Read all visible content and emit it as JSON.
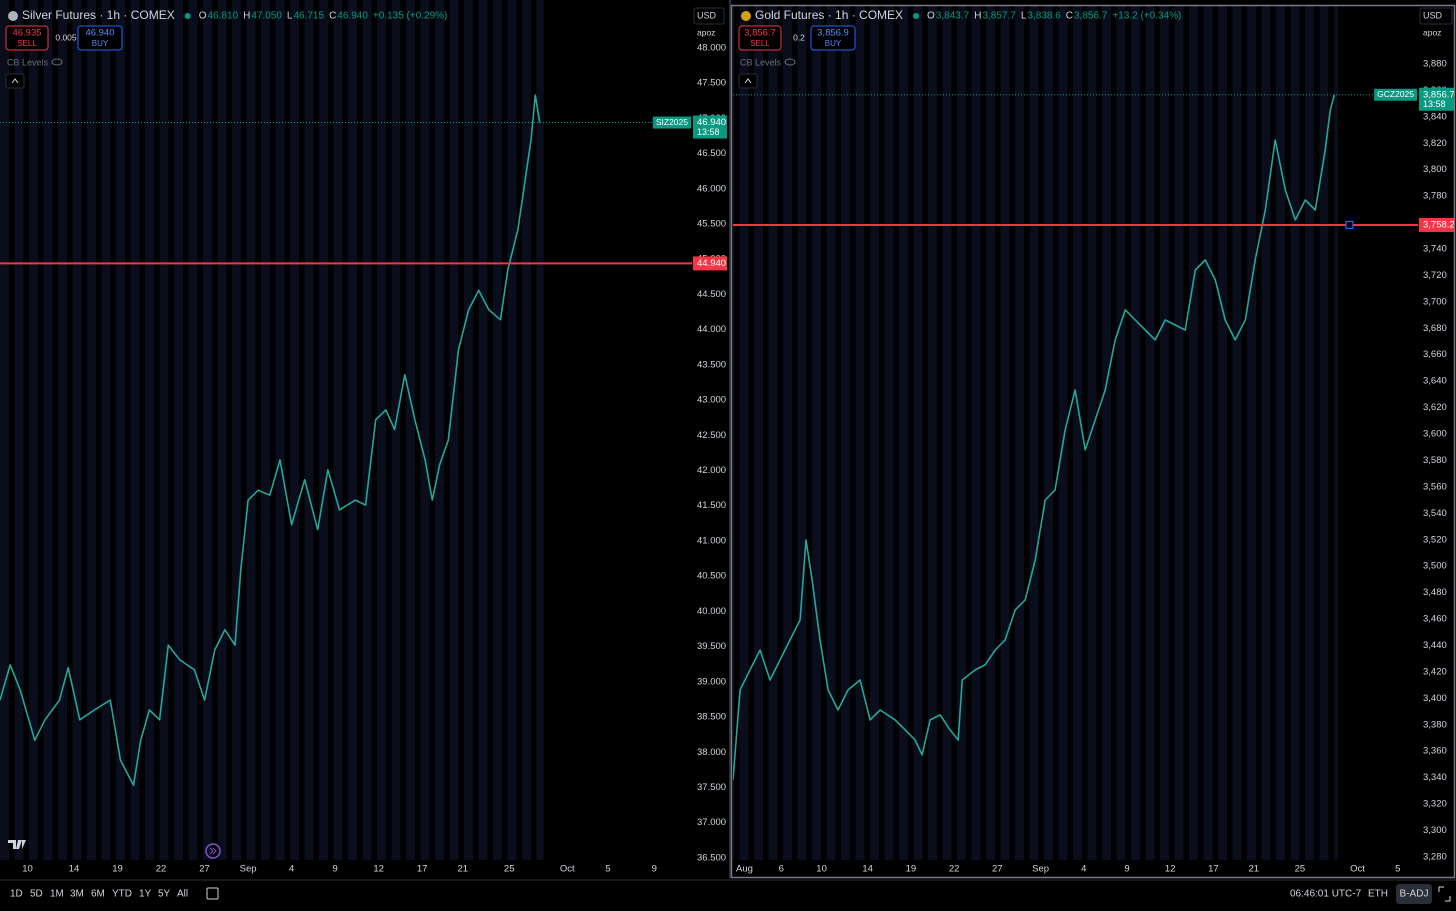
{
  "chart_data": [
    {
      "type": "line",
      "header": {
        "title": "Silver Futures · 1h · COMEX",
        "ohlc": [
          {
            "key": "O",
            "value": "46.810"
          },
          {
            "key": "H",
            "value": "47.050"
          },
          {
            "key": "L",
            "value": "46.715"
          },
          {
            "key": "C",
            "value": "46.940"
          }
        ],
        "change": "+0.135 (+0.29%)",
        "sell": {
          "price": "46.935",
          "label": "SELL"
        },
        "spread": "0.005",
        "buy": {
          "price": "46.940",
          "label": "BUY"
        },
        "indicator": "CB Levels",
        "currency": "USD",
        "scale_mode": "apoz"
      },
      "color": "#26a69a",
      "x": [
        3.9,
        4.6,
        5.3,
        6.3,
        7.0,
        8.0,
        8.6,
        9.4,
        10.4,
        11.5,
        12.2,
        13.1,
        13.6,
        14.2,
        14.9,
        15.5,
        16.3,
        17.3,
        18.0,
        18.7,
        19.4,
        20.1,
        20.5,
        21.0,
        21.7,
        22.5,
        23.2,
        24.0,
        24.9,
        25.8,
        26.5,
        27.3,
        28.4,
        29.1,
        29.8,
        30.5,
        31.1,
        31.8,
        32.5,
        33.2,
        33.7,
        34.2,
        34.8,
        35.5,
        36.2,
        36.9,
        37.6,
        38.4,
        38.9,
        39.6,
        40.1,
        40.5,
        40.8,
        41.1
      ],
      "values": [
        38.74,
        39.24,
        38.88,
        38.17,
        38.46,
        38.74,
        39.2,
        38.46,
        38.6,
        38.74,
        37.89,
        37.53,
        38.17,
        38.6,
        38.46,
        39.52,
        39.31,
        39.17,
        38.74,
        39.45,
        39.74,
        39.52,
        40.59,
        41.58,
        41.72,
        41.65,
        42.15,
        41.23,
        41.87,
        41.16,
        42.01,
        41.44,
        41.58,
        41.51,
        42.72,
        42.86,
        42.58,
        43.36,
        42.72,
        42.15,
        41.58,
        42.08,
        42.43,
        43.71,
        44.28,
        44.56,
        44.28,
        44.14,
        44.85,
        45.42,
        46.13,
        46.69,
        47.33,
        46.94
      ],
      "xlim": [
        3.9,
        51.6
      ],
      "xticks": [
        {
          "value": 5.8,
          "label": "10"
        },
        {
          "value": 9,
          "label": "14"
        },
        {
          "value": 12,
          "label": "19"
        },
        {
          "value": 15,
          "label": "22"
        },
        {
          "value": 18,
          "label": "27"
        },
        {
          "value": 21,
          "label": "Sep"
        },
        {
          "value": 24,
          "label": "4"
        },
        {
          "value": 27,
          "label": "9"
        },
        {
          "value": 30,
          "label": "12"
        },
        {
          "value": 33,
          "label": "17"
        },
        {
          "value": 35.8,
          "label": "21"
        },
        {
          "value": 39,
          "label": "25"
        },
        {
          "value": 43,
          "label": "Oct"
        },
        {
          "value": 45.8,
          "label": "5"
        },
        {
          "value": 49,
          "label": "9"
        }
      ],
      "ylim": [
        36.47,
        48.68
      ],
      "yticks": [
        {
          "value": 36.5,
          "label": "36.500"
        },
        {
          "value": 37,
          "label": "37.000"
        },
        {
          "value": 37.5,
          "label": "37.500"
        },
        {
          "value": 38,
          "label": "38.000"
        },
        {
          "value": 38.5,
          "label": "38.500"
        },
        {
          "value": 39,
          "label": "39.000"
        },
        {
          "value": 39.5,
          "label": "39.500"
        },
        {
          "value": 40,
          "label": "40.000"
        },
        {
          "value": 40.5,
          "label": "40.500"
        },
        {
          "value": 41,
          "label": "41.000"
        },
        {
          "value": 41.5,
          "label": "41.500"
        },
        {
          "value": 42,
          "label": "42.000"
        },
        {
          "value": 42.5,
          "label": "42.500"
        },
        {
          "value": 43,
          "label": "43.000"
        },
        {
          "value": 43.5,
          "label": "43.500"
        },
        {
          "value": 44,
          "label": "44.000"
        },
        {
          "value": 44.5,
          "label": "44.500"
        },
        {
          "value": 45,
          "label": "45.000"
        },
        {
          "value": 45.5,
          "label": "45.500"
        },
        {
          "value": 46,
          "label": "46.000"
        },
        {
          "value": 46.5,
          "label": "46.500"
        },
        {
          "value": 47,
          "label": "47.000"
        },
        {
          "value": 47.5,
          "label": "47.500"
        },
        {
          "value": 48,
          "label": "48.000"
        }
      ],
      "grid": false,
      "alert_line": {
        "value": 44.94,
        "label": "44.940",
        "color": "#f23645"
      },
      "last_price": {
        "value": 46.94,
        "label": "46.940",
        "symbol": "SIZ2025",
        "countdown": "13:58",
        "color": "#089981"
      }
    },
    {
      "type": "line",
      "header": {
        "title": "Gold Futures · 1h · COMEX",
        "ohlc": [
          {
            "key": "O",
            "value": "3,843.7"
          },
          {
            "key": "H",
            "value": "3,857.7"
          },
          {
            "key": "L",
            "value": "3,838.6"
          },
          {
            "key": "C",
            "value": "3,856.7"
          }
        ],
        "change": "+13.2 (+0.34%)",
        "sell": {
          "price": "3,856.7",
          "label": "SELL"
        },
        "spread": "0.2",
        "buy": {
          "price": "3,856.9",
          "label": "BUY"
        },
        "indicator": "CB Levels",
        "currency": "USD",
        "scale_mode": "apoz"
      },
      "color": "#26a69a",
      "x": [
        -0.35,
        0.14,
        0.83,
        1.53,
        2.22,
        2.92,
        3.61,
        4.31,
        4.72,
        5.14,
        5.69,
        6.25,
        6.94,
        7.64,
        8.47,
        9.17,
        9.86,
        10.9,
        11.6,
        12.29,
        12.78,
        13.33,
        14.03,
        14.72,
        15.28,
        15.56,
        16.46,
        17.15,
        17.85,
        18.54,
        19.24,
        19.93,
        20.63,
        21.32,
        22.01,
        22.71,
        23.4,
        24.1,
        24.79,
        25.49,
        26.18,
        26.88,
        27.57,
        28.26,
        28.96,
        29.65,
        30.35,
        31.04,
        31.74,
        32.43,
        33.13,
        33.82,
        34.51,
        35.21,
        35.9,
        36.6,
        37.29,
        37.99,
        38.68,
        39.38,
        40.07,
        40.76,
        41.11,
        41.39
      ],
      "values": [
        3338.3,
        3406.4,
        3421.5,
        3436.6,
        3413.9,
        3429.1,
        3444.2,
        3459.3,
        3519.9,
        3489.6,
        3444.2,
        3406.4,
        3391.2,
        3406.4,
        3413.9,
        3383.7,
        3391.2,
        3383.7,
        3376.1,
        3368.5,
        3357.2,
        3383.7,
        3387.5,
        3376.1,
        3368.5,
        3413.9,
        3421.5,
        3425.3,
        3436.6,
        3444.2,
        3466.9,
        3474.5,
        3504.7,
        3550.1,
        3557.7,
        3603.1,
        3633.3,
        3588.0,
        3610.7,
        3633.3,
        3671.2,
        3693.9,
        3686.3,
        3678.7,
        3671.2,
        3686.3,
        3682.5,
        3678.7,
        3724.1,
        3731.7,
        3716.6,
        3686.3,
        3671.2,
        3686.3,
        3731.7,
        3769.5,
        3822.5,
        3784.7,
        3762.0,
        3777.1,
        3769.5,
        3814.9,
        3845.2,
        3856.7
      ],
      "xlim": [
        -0.35,
        47.2
      ],
      "xticks": [
        {
          "value": 0,
          "label": "Aug"
        },
        {
          "value": 3,
          "label": "6"
        },
        {
          "value": 5.8,
          "label": "10"
        },
        {
          "value": 9,
          "label": "14"
        },
        {
          "value": 12,
          "label": "19"
        },
        {
          "value": 15,
          "label": "22"
        },
        {
          "value": 18,
          "label": "27"
        },
        {
          "value": 21,
          "label": "Sep"
        },
        {
          "value": 24,
          "label": "4"
        },
        {
          "value": 27,
          "label": "9"
        },
        {
          "value": 30,
          "label": "12"
        },
        {
          "value": 33,
          "label": "17"
        },
        {
          "value": 35.8,
          "label": "21"
        },
        {
          "value": 39,
          "label": "25"
        },
        {
          "value": 43,
          "label": "Oct"
        },
        {
          "value": 45.8,
          "label": "5"
        }
      ],
      "ylim": [
        3277.7,
        3928.4
      ],
      "yticks": [
        {
          "value": 3280,
          "label": "3,280"
        },
        {
          "value": 3300,
          "label": "3,300"
        },
        {
          "value": 3320,
          "label": "3,320"
        },
        {
          "value": 3340,
          "label": "3,340"
        },
        {
          "value": 3360,
          "label": "3,360"
        },
        {
          "value": 3380,
          "label": "3,380"
        },
        {
          "value": 3400,
          "label": "3,400"
        },
        {
          "value": 3420,
          "label": "3,420"
        },
        {
          "value": 3440,
          "label": "3,440"
        },
        {
          "value": 3460,
          "label": "3,460"
        },
        {
          "value": 3480,
          "label": "3,480"
        },
        {
          "value": 3500,
          "label": "3,500"
        },
        {
          "value": 3520,
          "label": "3,520"
        },
        {
          "value": 3540,
          "label": "3,540"
        },
        {
          "value": 3560,
          "label": "3,560"
        },
        {
          "value": 3580,
          "label": "3,580"
        },
        {
          "value": 3600,
          "label": "3,600"
        },
        {
          "value": 3620,
          "label": "3,620"
        },
        {
          "value": 3640,
          "label": "3,640"
        },
        {
          "value": 3660,
          "label": "3,660"
        },
        {
          "value": 3680,
          "label": "3,680"
        },
        {
          "value": 3700,
          "label": "3,700"
        },
        {
          "value": 3720,
          "label": "3,720"
        },
        {
          "value": 3740,
          "label": "3,740"
        },
        {
          "value": 3760,
          "label": "3,760"
        },
        {
          "value": 3780,
          "label": "3,780"
        },
        {
          "value": 3800,
          "label": "3,800"
        },
        {
          "value": 3820,
          "label": "3,820"
        },
        {
          "value": 3840,
          "label": "3,840"
        },
        {
          "value": 3860,
          "label": "3,860"
        },
        {
          "value": 3880,
          "label": "3,880"
        }
      ],
      "grid": false,
      "alert_line": {
        "value": 3758.2,
        "label": "3,758.2",
        "color": "#f23645"
      },
      "last_price": {
        "value": 3856.7,
        "label": "3,856.7",
        "symbol": "GCZ2025",
        "countdown": "13:58",
        "color": "#089981"
      }
    }
  ],
  "toolbar": {
    "ranges": [
      "1D",
      "5D",
      "1M",
      "3M",
      "6M",
      "YTD",
      "1Y",
      "5Y",
      "All"
    ],
    "time": "06:46:01 UTC-7",
    "session": "ETH",
    "adjust": "B-ADJ"
  }
}
